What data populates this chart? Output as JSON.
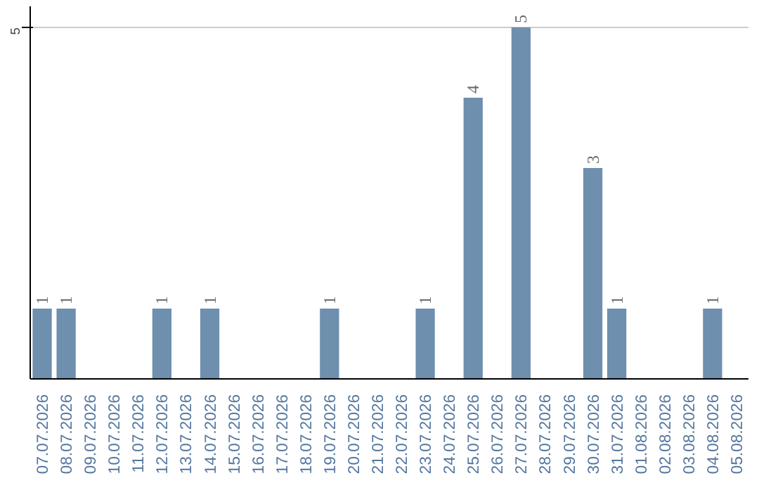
{
  "chart_data": {
    "type": "bar",
    "categories": [
      "07.07.2026",
      "08.07.2026",
      "09.07.2026",
      "10.07.2026",
      "11.07.2026",
      "12.07.2026",
      "13.07.2026",
      "14.07.2026",
      "15.07.2026",
      "16.07.2026",
      "17.07.2026",
      "18.07.2026",
      "19.07.2026",
      "20.07.2026",
      "21.07.2026",
      "22.07.2026",
      "23.07.2026",
      "24.07.2026",
      "25.07.2026",
      "26.07.2026",
      "27.07.2026",
      "28.07.2026",
      "29.07.2026",
      "30.07.2026",
      "31.07.2026",
      "01.08.2026",
      "02.08.2026",
      "03.08.2026",
      "04.08.2026",
      "05.08.2026"
    ],
    "values": [
      1,
      1,
      0,
      0,
      0,
      1,
      0,
      1,
      0,
      0,
      0,
      0,
      1,
      0,
      0,
      0,
      1,
      0,
      4,
      0,
      5,
      0,
      0,
      3,
      1,
      0,
      0,
      0,
      1,
      0
    ],
    "value_labels": [
      "1",
      "1",
      null,
      null,
      null,
      "1",
      null,
      "1",
      null,
      null,
      null,
      null,
      "1",
      null,
      null,
      null,
      "1",
      null,
      "4",
      null,
      "5",
      null,
      null,
      "3",
      "1",
      null,
      null,
      null,
      "1",
      null
    ],
    "color": "#6e8fad",
    "ylim": [
      0,
      5.3
    ],
    "yticks": [
      5
    ],
    "grid": "y"
  }
}
